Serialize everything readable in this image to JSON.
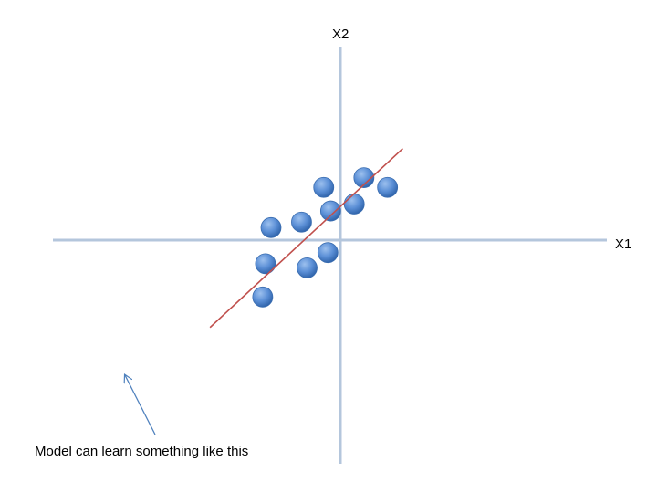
{
  "chart_data": {
    "type": "scatter",
    "title": "",
    "xlabel": "X1",
    "ylabel": "X2",
    "xlim": [
      -10,
      10
    ],
    "ylim": [
      -8,
      7
    ],
    "grid": false,
    "points": [
      {
        "x": -5.0,
        "y": 0.9
      },
      {
        "x": -2.8,
        "y": 1.3
      },
      {
        "x": -1.2,
        "y": 3.8
      },
      {
        "x": -0.7,
        "y": 2.1
      },
      {
        "x": 1.0,
        "y": 2.6
      },
      {
        "x": 1.7,
        "y": 4.5
      },
      {
        "x": 3.4,
        "y": 3.8
      },
      {
        "x": -0.9,
        "y": -0.9
      },
      {
        "x": -2.4,
        "y": -2.0
      },
      {
        "x": -5.4,
        "y": -1.7
      },
      {
        "x": -5.6,
        "y": -4.1
      }
    ],
    "fit_line": {
      "label": "Model can learn something like this",
      "start": {
        "x": -9.4,
        "y": -6.3
      },
      "end": {
        "x": 4.5,
        "y": 6.6
      },
      "color": "#c0504d"
    },
    "colors": {
      "axis": "#b4c6dc",
      "point": "#4f81bd",
      "arrow": "#4f81bd"
    }
  }
}
